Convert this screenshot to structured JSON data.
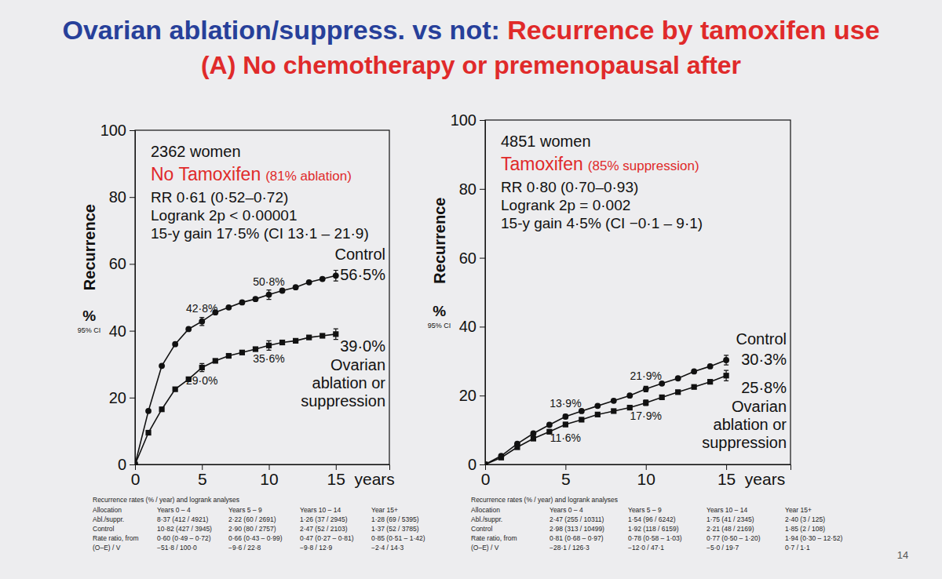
{
  "header": {
    "title_lead": "Ovarian ablation/suppress. vs not: ",
    "title_main": "Recurrence by tamoxifen use",
    "subtitle": "(A) No chemotherapy or premenopausal after",
    "page": 14
  },
  "chart_data": [
    {
      "type": "line",
      "annotation": {
        "n": "2362 women",
        "group": "No Tamoxifen",
        "group_note": "(81% ablation)",
        "stats": [
          "RR 0·61 (0·52–0·72)",
          "Logrank 2p < 0·00001",
          "15-y gain 17·5% (CI 13·1 – 21·9)"
        ]
      },
      "ylabel": "Recurrence",
      "ylabel_unit": "%",
      "ci_label": "95% CI",
      "xlabel": "years",
      "x": [
        0,
        1,
        2,
        3,
        4,
        5,
        6,
        7,
        8,
        9,
        10,
        11,
        12,
        13,
        14,
        15
      ],
      "xlim": [
        0,
        19
      ],
      "xticks": [
        0,
        5,
        10,
        15
      ],
      "ylim": [
        0,
        100
      ],
      "yticks": [
        0,
        20,
        40,
        60,
        80,
        100
      ],
      "grid": false,
      "data_labels": true,
      "series": [
        {
          "name": "Control",
          "color": "#111111",
          "marker": "circle",
          "line_style": "solid",
          "values": [
            0,
            16,
            29.5,
            36,
            40.5,
            42.8,
            45.5,
            47,
            48.5,
            49.5,
            50.8,
            52,
            53,
            54.5,
            55.5,
            56.5
          ],
          "errors": [
            null,
            null,
            null,
            null,
            null,
            1.2,
            null,
            null,
            null,
            null,
            1.4,
            null,
            null,
            null,
            null,
            1.6
          ],
          "value_labels": [
            null,
            null,
            null,
            null,
            null,
            "42·8%",
            null,
            null,
            null,
            null,
            "50·8%",
            null,
            null,
            null,
            null,
            "56·5%"
          ]
        },
        {
          "name": "Ovarian ablation or suppression",
          "color": "#111111",
          "marker": "square",
          "line_style": "solid",
          "values": [
            0,
            9.5,
            16.5,
            22.5,
            25.5,
            29.0,
            31,
            32.5,
            33.5,
            34.5,
            35.6,
            36.5,
            37,
            38,
            38.5,
            39.0
          ],
          "errors": [
            null,
            null,
            null,
            null,
            null,
            1.2,
            null,
            null,
            null,
            null,
            1.4,
            null,
            null,
            null,
            null,
            1.6
          ],
          "value_labels": [
            null,
            null,
            null,
            null,
            null,
            "29·0%",
            null,
            null,
            null,
            null,
            "35·6%",
            null,
            null,
            null,
            null,
            "39·0%"
          ]
        }
      ],
      "table": {
        "caption": "Recurrence rates (% / year) and logrank analyses",
        "header": [
          "Allocation",
          "Years 0 – 4",
          "Years 5 – 9",
          "Years 10 – 14",
          "Year 15+"
        ],
        "rows": [
          [
            "Abl./suppr.",
            "8·37 (412 / 4921)",
            "2·22 (60 / 2691)",
            "1·26 (37 / 2945)",
            "1·28 (69 / 5395)"
          ],
          [
            "Control",
            "10·82 (427 / 3945)",
            "2·90 (80 / 2757)",
            "2·47 (52 / 2103)",
            "1·37 (52 / 3785)"
          ],
          [
            "Rate ratio, from",
            "0·60 (0·49 – 0·72)",
            "0·66 (0·43 – 0·99)",
            "0·47 (0·27 – 0·81)",
            "0·85 (0·51 – 1·42)"
          ],
          [
            "(O–E) / V",
            "−51·8 / 100·0",
            "−9·6 / 22·8",
            "−9·8 / 12·9",
            "−2·4 / 14·3"
          ]
        ]
      }
    },
    {
      "type": "line",
      "annotation": {
        "n": "4851 women",
        "group": "Tamoxifen",
        "group_note": "(85% suppression)",
        "stats": [
          "RR 0·80 (0·70–0·93)",
          "Logrank 2p = 0·002",
          "15-y gain 4·5% (CI −0·1 – 9·1)"
        ]
      },
      "ylabel": "Recurrence",
      "ylabel_unit": "%",
      "ci_label": "95% CI",
      "xlabel": "years",
      "x": [
        0,
        1,
        2,
        3,
        4,
        5,
        6,
        7,
        8,
        9,
        10,
        11,
        12,
        13,
        14,
        15
      ],
      "xlim": [
        0,
        19
      ],
      "xticks": [
        0,
        5,
        10,
        15
      ],
      "ylim": [
        0,
        100
      ],
      "yticks": [
        0,
        20,
        40,
        60,
        80,
        100
      ],
      "grid": false,
      "data_labels": true,
      "series": [
        {
          "name": "Control",
          "color": "#111111",
          "marker": "circle",
          "line_style": "solid",
          "values": [
            0,
            2.5,
            6,
            9,
            11.5,
            13.9,
            15.5,
            17,
            18.5,
            20,
            21.9,
            23.5,
            25,
            27,
            28.5,
            30.3
          ],
          "errors": [
            null,
            null,
            null,
            null,
            null,
            0.6,
            null,
            null,
            null,
            null,
            0.8,
            null,
            null,
            null,
            null,
            1.4
          ],
          "value_labels": [
            null,
            null,
            null,
            null,
            null,
            "13·9%",
            null,
            null,
            null,
            null,
            "21·9%",
            null,
            null,
            null,
            null,
            "30·3%"
          ]
        },
        {
          "name": "Ovarian ablation or suppression",
          "color": "#111111",
          "marker": "square",
          "line_style": "solid",
          "values": [
            0,
            2,
            5,
            7.5,
            9.5,
            11.6,
            13,
            14.5,
            15.5,
            16.5,
            17.9,
            19.5,
            21,
            22.5,
            24,
            25.8
          ],
          "errors": [
            null,
            null,
            null,
            null,
            null,
            0.6,
            null,
            null,
            null,
            null,
            0.8,
            null,
            null,
            null,
            null,
            1.5
          ],
          "value_labels": [
            null,
            null,
            null,
            null,
            null,
            "11·6%",
            null,
            null,
            null,
            null,
            "17·9%",
            null,
            null,
            null,
            null,
            "25·8%"
          ]
        }
      ],
      "table": {
        "caption": "Recurrence rates (% / year) and logrank analyses",
        "header": [
          "Allocation",
          "Years 0 – 4",
          "Years 5 – 9",
          "Years 10 – 14",
          "Year 15+"
        ],
        "rows": [
          [
            "Abl./suppr.",
            "2·47 (255 / 10311)",
            "1·54 (96 / 6242)",
            "1·75 (41 / 2345)",
            "2·40 (3 / 125)"
          ],
          [
            "Control",
            "2·98 (313 / 10499)",
            "1·92 (118 / 6159)",
            "2·21 (48 / 2169)",
            "1·85 (2 / 108)"
          ],
          [
            "Rate ratio, from",
            "0·81 (0·68 – 0·97)",
            "0·78 (0·58 – 1·03)",
            "0·77 (0·50 – 1·20)",
            "1·94 (0·30 – 12·52)"
          ],
          [
            "(O–E) / V",
            "−28·1 / 126·3",
            "−12·0 / 47·1",
            "−5·0 / 19·7",
            "0·7 / 1·1"
          ]
        ]
      }
    }
  ]
}
